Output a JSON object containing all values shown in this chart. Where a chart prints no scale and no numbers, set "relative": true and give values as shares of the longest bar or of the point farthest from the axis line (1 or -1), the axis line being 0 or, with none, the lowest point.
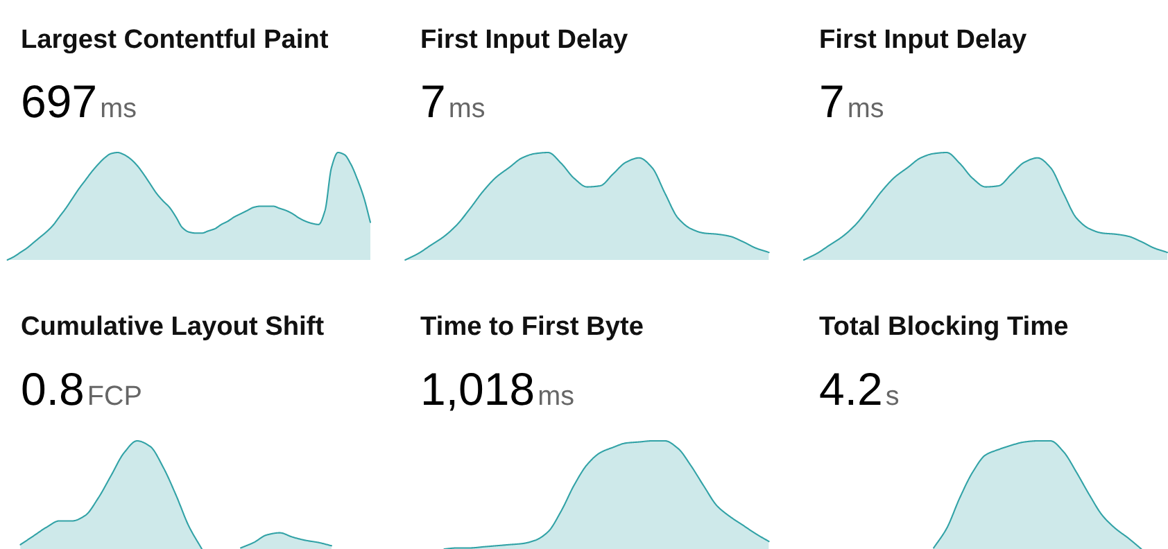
{
  "chart_data": [
    {
      "type": "area",
      "title": "Largest Contentful Paint",
      "annotations": [
        "697",
        "ms"
      ],
      "relative": true,
      "categories": [
        null,
        null,
        null,
        null,
        null,
        null,
        null,
        null,
        null,
        null,
        null,
        null,
        null,
        null,
        null,
        null,
        null,
        null,
        null,
        null,
        null,
        null,
        null,
        null,
        null,
        null,
        null,
        null,
        null,
        null,
        null,
        null,
        null,
        null,
        null,
        null,
        null,
        null,
        null,
        null,
        null,
        null,
        null,
        null,
        null,
        null,
        null,
        null,
        null,
        null,
        null,
        null,
        null,
        null,
        null,
        null,
        null
      ],
      "series": [
        {
          "color": "#31a2a6",
          "values": [
            0,
            0.03,
            0.07,
            0.11,
            0.16,
            0.21,
            0.26,
            0.32,
            0.4,
            0.48,
            0.57,
            0.66,
            0.74,
            0.82,
            0.89,
            0.95,
            0.99,
            1.0,
            0.98,
            0.94,
            0.88,
            0.8,
            0.71,
            0.62,
            0.55,
            0.49,
            0.4,
            0.3,
            0.26,
            0.25,
            0.25,
            0.27,
            0.29,
            0.33,
            0.36,
            0.4,
            0.43,
            0.46,
            0.49,
            0.5,
            0.5,
            0.5,
            0.48,
            0.46,
            0.43,
            0.39,
            0.36,
            0.34,
            0.33,
            0.46,
            0.86,
            1.0,
            0.98,
            0.89,
            0.75,
            0.58,
            0.35
          ]
        }
      ]
    },
    {
      "type": "area",
      "title": "First Input Delay",
      "annotations": [
        "7",
        "ms"
      ],
      "relative": true,
      "categories": [
        null,
        null,
        null,
        null,
        null,
        null,
        null,
        null,
        null,
        null,
        null,
        null,
        null,
        null,
        null,
        null,
        null,
        null,
        null,
        null,
        null,
        null,
        null,
        null,
        null,
        null,
        null,
        null,
        null
      ],
      "series": [
        {
          "color": "#31a2a6",
          "values": [
            0,
            0.06,
            0.14,
            0.22,
            0.33,
            0.48,
            0.64,
            0.77,
            0.86,
            0.95,
            0.99,
            1.0,
            0.9,
            0.76,
            0.68,
            0.69,
            0.8,
            0.91,
            0.95,
            0.86,
            0.62,
            0.39,
            0.29,
            0.25,
            0.24,
            0.22,
            0.17,
            0.11,
            0.07
          ]
        }
      ]
    },
    {
      "type": "area",
      "title": "First Input Delay",
      "annotations": [
        "7",
        "ms"
      ],
      "relative": true,
      "categories": [
        null,
        null,
        null,
        null,
        null,
        null,
        null,
        null,
        null,
        null,
        null,
        null,
        null,
        null,
        null,
        null,
        null,
        null,
        null,
        null,
        null,
        null,
        null,
        null,
        null,
        null,
        null,
        null,
        null
      ],
      "series": [
        {
          "color": "#31a2a6",
          "values": [
            0,
            0.06,
            0.14,
            0.22,
            0.33,
            0.48,
            0.64,
            0.77,
            0.86,
            0.95,
            0.99,
            1.0,
            0.9,
            0.76,
            0.68,
            0.69,
            0.8,
            0.91,
            0.95,
            0.86,
            0.62,
            0.39,
            0.29,
            0.25,
            0.24,
            0.22,
            0.17,
            0.11,
            0.07
          ]
        }
      ]
    },
    {
      "type": "area",
      "title": "Cumulative Layout Shift",
      "annotations": [
        "0.8",
        "FCP"
      ],
      "relative": true,
      "categories": [
        null,
        null,
        null,
        null,
        null,
        null,
        null,
        null,
        null,
        null,
        null,
        null,
        null,
        null,
        null,
        null,
        null,
        null,
        null,
        null,
        null,
        null,
        null,
        null,
        null,
        null,
        null,
        null,
        null
      ],
      "series": [
        {
          "color": "#31a2a6",
          "values": [
            null,
            0.04,
            0.12,
            0.2,
            0.26,
            0.26,
            0.31,
            0.47,
            0.68,
            0.89,
            1.0,
            0.95,
            0.76,
            0.5,
            0.21,
            0,
            null,
            null,
            0.01,
            0.06,
            0.13,
            0.15,
            0.11,
            0.08,
            0.06,
            0.03,
            null,
            null,
            null
          ]
        }
      ]
    },
    {
      "type": "area",
      "title": "Time to First Byte",
      "annotations": [
        "1,018",
        "ms"
      ],
      "relative": true,
      "categories": [
        null,
        null,
        null,
        null,
        null,
        null,
        null,
        null,
        null,
        null,
        null,
        null,
        null,
        null,
        null,
        null,
        null,
        null,
        null,
        null,
        null,
        null,
        null,
        null,
        null,
        null,
        null,
        null,
        null
      ],
      "series": [
        {
          "color": "#31a2a6",
          "values": [
            null,
            null,
            null,
            0,
            0.01,
            0.01,
            0.02,
            0.03,
            0.04,
            0.05,
            0.08,
            0.16,
            0.35,
            0.59,
            0.78,
            0.89,
            0.94,
            0.98,
            0.99,
            1.0,
            1.0,
            0.93,
            0.77,
            0.58,
            0.4,
            0.3,
            0.22,
            0.14,
            0.07
          ]
        }
      ]
    },
    {
      "type": "area",
      "title": "Total Blocking Time",
      "annotations": [
        "4.2",
        "s"
      ],
      "relative": true,
      "categories": [
        null,
        null,
        null,
        null,
        null,
        null,
        null,
        null,
        null,
        null,
        null,
        null,
        null,
        null,
        null,
        null,
        null,
        null,
        null,
        null,
        null,
        null,
        null,
        null,
        null,
        null,
        null,
        null,
        null
      ],
      "series": [
        {
          "color": "#31a2a6",
          "values": [
            null,
            null,
            null,
            null,
            null,
            null,
            null,
            null,
            null,
            null,
            0.01,
            0.19,
            0.47,
            0.71,
            0.87,
            0.92,
            0.96,
            0.99,
            1.0,
            1.0,
            0.9,
            0.71,
            0.5,
            0.31,
            0.19,
            0.1,
            0,
            null,
            null
          ]
        }
      ]
    }
  ]
}
